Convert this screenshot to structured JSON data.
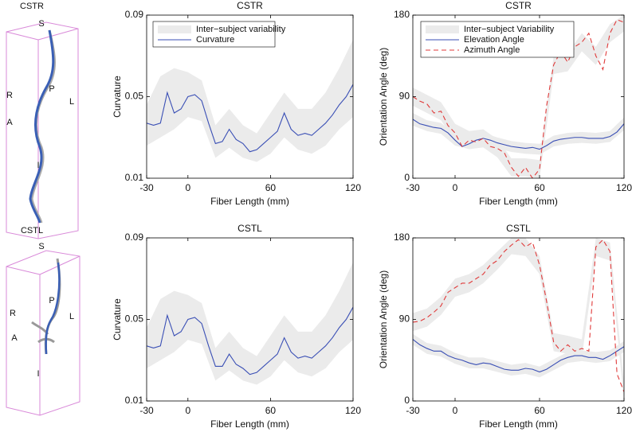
{
  "chart_data": [
    {
      "type": "line",
      "title": "CSTR",
      "xlabel": "Fiber Length (mm)",
      "ylabel": "Curvature",
      "xlim": [
        -30,
        120
      ],
      "xticks": [
        -30,
        0,
        60,
        120
      ],
      "ylim": [
        0.01,
        0.09
      ],
      "yticks": [
        0.01,
        0.05,
        0.09
      ],
      "legend": true,
      "x": [
        -30,
        -25,
        -20,
        -15,
        -10,
        -5,
        0,
        5,
        10,
        15,
        20,
        25,
        30,
        35,
        40,
        45,
        50,
        55,
        60,
        65,
        70,
        75,
        80,
        85,
        90,
        95,
        100,
        105,
        110,
        115,
        120
      ],
      "series": [
        {
          "name": "Inter−subject variability",
          "kind": "band",
          "color": "#ebebeb",
          "x": [
            -30,
            -20,
            -10,
            0,
            10,
            20,
            30,
            40,
            50,
            60,
            70,
            80,
            90,
            100,
            110,
            120
          ],
          "bands": [
            {
              "lower": [
                0.026,
                0.03,
                0.034,
                0.04,
                0.038,
                0.02,
                0.025,
                0.02,
                0.018,
                0.022,
                0.03,
                0.024,
                0.022,
                0.026,
                0.034,
                0.04
              ],
              "upper": [
                0.046,
                0.06,
                0.064,
                0.062,
                0.058,
                0.036,
                0.044,
                0.036,
                0.032,
                0.042,
                0.052,
                0.044,
                0.044,
                0.052,
                0.064,
                0.078
              ]
            }
          ]
        },
        {
          "name": "Curvature",
          "kind": "line",
          "color": "#3a4fb5",
          "dash": false,
          "values": [
            0.037,
            0.036,
            0.037,
            0.052,
            0.042,
            0.044,
            0.05,
            0.051,
            0.048,
            0.037,
            0.027,
            0.028,
            0.034,
            0.029,
            0.027,
            0.023,
            0.024,
            0.027,
            0.03,
            0.033,
            0.042,
            0.034,
            0.031,
            0.032,
            0.031,
            0.034,
            0.037,
            0.041,
            0.046,
            0.05,
            0.056
          ]
        }
      ]
    },
    {
      "type": "line",
      "title": "CSTR",
      "xlabel": "Fiber Length (mm)",
      "ylabel": "Orientation Angle (deg)",
      "xlim": [
        -30,
        120
      ],
      "xticks": [
        -30,
        0,
        60,
        120
      ],
      "ylim": [
        0,
        180
      ],
      "yticks": [
        0,
        90,
        180
      ],
      "legend": true,
      "x": [
        -30,
        -25,
        -20,
        -15,
        -10,
        -5,
        0,
        5,
        10,
        15,
        20,
        25,
        30,
        35,
        40,
        45,
        50,
        55,
        60,
        65,
        70,
        75,
        80,
        85,
        90,
        95,
        100,
        105,
        110,
        115,
        120
      ],
      "series": [
        {
          "name": "Inter−subject Variability",
          "kind": "band",
          "color": "#ebebeb",
          "x": [
            -30,
            -20,
            -10,
            0,
            10,
            20,
            30,
            40,
            50,
            60,
            70,
            80,
            90,
            100,
            110,
            120
          ],
          "bands": [
            {
              "lower": [
                58,
                52,
                49,
                36,
                32,
                38,
                33,
                29,
                27,
                26,
                35,
                38,
                39,
                38,
                40,
                53
              ],
              "upper": [
                72,
                64,
                61,
                48,
                44,
                50,
                45,
                41,
                39,
                38,
                47,
                50,
                51,
                50,
                52,
                67
              ]
            },
            {
              "lower": [
                80,
                72,
                64,
                40,
                32,
                34,
                23,
                2,
                2,
                0,
                115,
                118,
                140,
                125,
                150,
                162
              ],
              "upper": [
                100,
                92,
                84,
                60,
                52,
                54,
                43,
                22,
                22,
                20,
                135,
                138,
                160,
                145,
                170,
                180
              ]
            }
          ]
        },
        {
          "name": "Elevation Angle",
          "kind": "line",
          "color": "#3a4fb5",
          "dash": false,
          "values": [
            65,
            60,
            58,
            56,
            55,
            50,
            42,
            35,
            38,
            42,
            44,
            42,
            39,
            37,
            35,
            34,
            33,
            34,
            32,
            36,
            41,
            43,
            44,
            45,
            45,
            44,
            44,
            44,
            46,
            51,
            60
          ]
        },
        {
          "name": "Azimuth Angle",
          "kind": "line",
          "color": "#e03a3a",
          "dash": true,
          "values": [
            90,
            85,
            82,
            72,
            74,
            58,
            50,
            35,
            42,
            40,
            44,
            35,
            33,
            28,
            12,
            2,
            12,
            0,
            10,
            80,
            125,
            140,
            128,
            145,
            150,
            160,
            135,
            120,
            160,
            175,
            172
          ]
        }
      ]
    },
    {
      "type": "line",
      "title": "CSTL",
      "xlabel": "Fiber Length (mm)",
      "ylabel": "Curvature",
      "xlim": [
        -30,
        120
      ],
      "xticks": [
        -30,
        0,
        60,
        120
      ],
      "ylim": [
        0.01,
        0.09
      ],
      "yticks": [
        0.01,
        0.05,
        0.09
      ],
      "legend": false,
      "x": [
        -30,
        -25,
        -20,
        -15,
        -10,
        -5,
        0,
        5,
        10,
        15,
        20,
        25,
        30,
        35,
        40,
        45,
        50,
        55,
        60,
        65,
        70,
        75,
        80,
        85,
        90,
        95,
        100,
        105,
        110,
        115,
        120
      ],
      "series": [
        {
          "kind": "band",
          "color": "#ebebeb",
          "x": [
            -30,
            -20,
            -10,
            0,
            10,
            20,
            30,
            40,
            50,
            60,
            70,
            80,
            90,
            100,
            110,
            120
          ],
          "bands": [
            {
              "lower": [
                0.026,
                0.03,
                0.034,
                0.04,
                0.038,
                0.02,
                0.025,
                0.02,
                0.018,
                0.022,
                0.03,
                0.024,
                0.022,
                0.026,
                0.034,
                0.04
              ],
              "upper": [
                0.046,
                0.06,
                0.064,
                0.062,
                0.058,
                0.036,
                0.044,
                0.036,
                0.032,
                0.042,
                0.052,
                0.044,
                0.044,
                0.052,
                0.064,
                0.078
              ]
            }
          ]
        },
        {
          "kind": "line",
          "color": "#3a4fb5",
          "dash": false,
          "values": [
            0.037,
            0.036,
            0.037,
            0.052,
            0.042,
            0.044,
            0.05,
            0.051,
            0.048,
            0.037,
            0.027,
            0.027,
            0.033,
            0.028,
            0.026,
            0.023,
            0.024,
            0.027,
            0.03,
            0.033,
            0.041,
            0.034,
            0.031,
            0.032,
            0.031,
            0.034,
            0.037,
            0.041,
            0.046,
            0.05,
            0.056
          ]
        }
      ]
    },
    {
      "type": "line",
      "title": "CSTL",
      "xlabel": "Fiber Length (mm)",
      "ylabel": "Orientation Angle (deg)",
      "xlim": [
        -30,
        120
      ],
      "xticks": [
        -30,
        0,
        60,
        120
      ],
      "ylim": [
        0,
        180
      ],
      "yticks": [
        0,
        90,
        180
      ],
      "legend": false,
      "x": [
        -30,
        -25,
        -20,
        -15,
        -10,
        -5,
        0,
        5,
        10,
        15,
        20,
        25,
        30,
        35,
        40,
        45,
        50,
        55,
        60,
        65,
        70,
        75,
        80,
        85,
        90,
        95,
        100,
        105,
        110,
        115,
        120
      ],
      "series": [
        {
          "kind": "band",
          "color": "#ebebeb",
          "x": [
            -30,
            -20,
            -10,
            0,
            10,
            20,
            30,
            40,
            50,
            60,
            70,
            80,
            90,
            100,
            110,
            120
          ],
          "bands": [
            {
              "lower": [
                62,
                52,
                49,
                41,
                36,
                36,
                32,
                28,
                30,
                26,
                34,
                42,
                44,
                42,
                44,
                54
              ],
              "upper": [
                74,
                64,
                61,
                53,
                48,
                48,
                44,
                40,
                42,
                38,
                46,
                54,
                56,
                54,
                56,
                66
              ]
            },
            {
              "lower": [
                77,
                82,
                95,
                115,
                120,
                130,
                145,
                162,
                160,
                140,
                55,
                52,
                48,
                160,
                155,
                0
              ],
              "upper": [
                97,
                102,
                115,
                135,
                140,
                150,
                165,
                180,
                180,
                160,
                75,
                72,
                68,
                180,
                175,
                20
              ]
            }
          ]
        },
        {
          "kind": "line",
          "color": "#3a4fb5",
          "dash": false,
          "values": [
            68,
            62,
            58,
            55,
            55,
            50,
            47,
            45,
            42,
            40,
            42,
            41,
            38,
            35,
            34,
            34,
            36,
            35,
            32,
            35,
            40,
            45,
            48,
            50,
            50,
            48,
            48,
            46,
            50,
            55,
            60
          ]
        },
        {
          "kind": "line",
          "color": "#e03a3a",
          "dash": true,
          "values": [
            87,
            88,
            92,
            98,
            105,
            120,
            125,
            130,
            130,
            135,
            140,
            150,
            155,
            165,
            172,
            178,
            170,
            175,
            150,
            110,
            65,
            55,
            62,
            55,
            58,
            55,
            170,
            178,
            165,
            30,
            10
          ]
        }
      ]
    }
  ],
  "figures": [
    {
      "title": "CSTR",
      "labels": [
        "S",
        "R",
        "P",
        "L",
        "A",
        "I"
      ]
    },
    {
      "title": "CSTL",
      "labels": [
        "S",
        "P",
        "R",
        "L",
        "A",
        "I"
      ]
    }
  ]
}
